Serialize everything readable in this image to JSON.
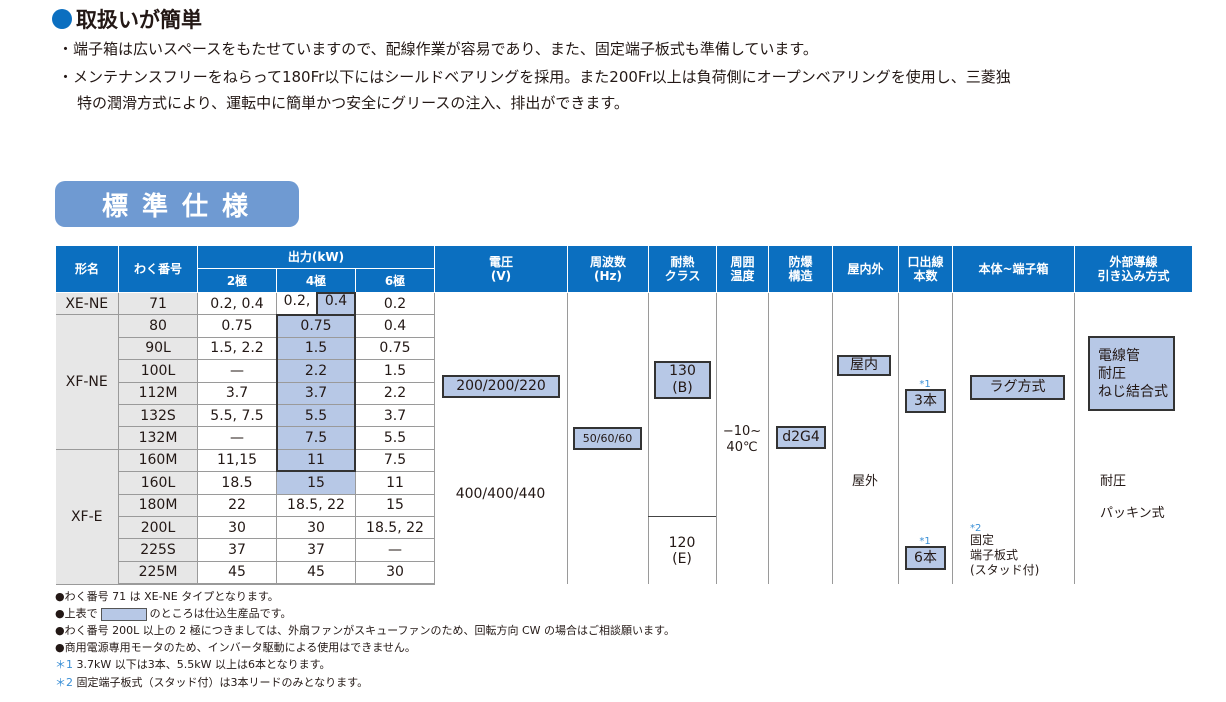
{
  "section": {
    "heading": "取扱いが簡単",
    "bullets": [
      "・端子箱は広いスペースをもたせていますので、配線作業が容易であり、また、固定端子板式も準備しています。",
      "・メンテナンスフリーをねらって180Fr以下にはシールドベアリングを採用。また200Fr以上は負荷側にオープンベアリングを使用し、三菱独",
      "特の潤滑方式により、運転中に簡単かつ安全にグリースの注入、排出ができます。"
    ]
  },
  "spec_title": "標準仕様",
  "colors": {
    "header_blue": "#0b6fc0",
    "highlight": "#b7c8e6",
    "badge": "#6f9ad2"
  },
  "table": {
    "headers": {
      "model": "形名",
      "frame": "わく番号",
      "output": "出力(kW)",
      "poles": [
        "2極",
        "4極",
        "6極"
      ],
      "voltage": "電圧\n(V)",
      "frequency": "周波数\n(Hz)",
      "heat_class": "耐熱\nクラス",
      "ambient": "周囲\n温度",
      "explosion": "防爆\n構造",
      "indoor_outdoor": "屋内外",
      "lead_count": "口出線\n本数",
      "terminal_box": "本体~端子箱",
      "wiring": "外部導線\n引き込み方式"
    },
    "models": [
      "XE-NE",
      "XF-NE",
      "XF-E"
    ],
    "rows": [
      {
        "frame": "71",
        "p2": "0.2, 0.4",
        "p4a": "0.2,",
        "p4b": "0.4",
        "p6": "0.2"
      },
      {
        "frame": "80",
        "p2": "0.75",
        "p4": "0.75",
        "p6": "0.4"
      },
      {
        "frame": "90L",
        "p2": "1.5, 2.2",
        "p4": "1.5",
        "p6": "0.75"
      },
      {
        "frame": "100L",
        "p2": "—",
        "p4": "2.2",
        "p6": "1.5"
      },
      {
        "frame": "112M",
        "p2": "3.7",
        "p4": "3.7",
        "p6": "2.2"
      },
      {
        "frame": "132S",
        "p2": "5.5, 7.5",
        "p4": "5.5",
        "p6": "3.7"
      },
      {
        "frame": "132M",
        "p2": "—",
        "p4": "7.5",
        "p6": "5.5"
      },
      {
        "frame": "160M",
        "p2": "11,15",
        "p4": "11",
        "p6": "7.5"
      },
      {
        "frame": "160L",
        "p2": "18.5",
        "p4": "15",
        "p6": "11"
      },
      {
        "frame": "180M",
        "p2": "22",
        "p4": "18.5, 22",
        "p6": "15"
      },
      {
        "frame": "200L",
        "p2": "30",
        "p4": "30",
        "p6": "18.5, 22"
      },
      {
        "frame": "225S",
        "p2": "37",
        "p4": "37",
        "p6": "—"
      },
      {
        "frame": "225M",
        "p2": "45",
        "p4": "45",
        "p6": "30"
      }
    ],
    "voltage": [
      "200/200/220",
      "400/400/440"
    ],
    "frequency": "50/60/60",
    "heat_class": [
      "130\n(B)",
      "120\n(E)"
    ],
    "ambient": "−10~\n40℃",
    "explosion": "d2G4",
    "indoor_outdoor": [
      "屋内",
      "屋外"
    ],
    "lead_mark": "*1",
    "lead_count": [
      "3本",
      "6本"
    ],
    "terminal_box": {
      "lug": "ラグ方式",
      "mark": "*2",
      "fixed": "固定\n端子板式\n(スタッド付)"
    },
    "wiring": {
      "conduit": "電線管\n耐圧\nねじ結合式",
      "packing": "耐圧\n\nパッキン式"
    }
  },
  "notes": {
    "n1": "●わく番号 71 は XE-NE タイプとなります。",
    "n2_pre": "●上表で",
    "n2_post": "のところは仕込生産品です。",
    "n3": "●わく番号 200L 以上の 2 極につきましては、外扇ファンがスキューファンのため、回転方向 CW の場合はご相談願います。",
    "n4": "●商用電源専用モータのため、インバータ駆動による使用はできません。",
    "s1_mark": "＊1",
    "s1": "3.7kW 以下は3本、5.5kW 以上は6本となります。",
    "s2_mark": "＊2",
    "s2": "固定端子板式（スタッド付）は3本リードのみとなります。"
  }
}
